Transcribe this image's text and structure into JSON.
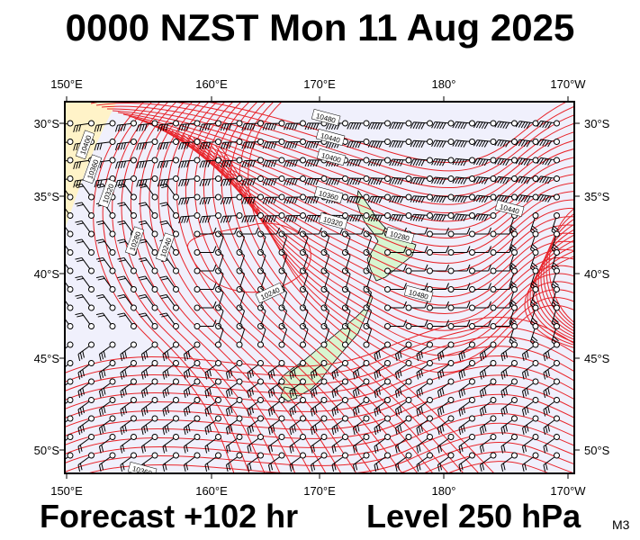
{
  "header": {
    "title": "0000 NZST Mon 11 Aug 2025"
  },
  "footer": {
    "forecast": "Forecast +102 hr",
    "level": "Level 250 hPa",
    "code": "M3"
  },
  "map": {
    "lon_labels": [
      "150°E",
      "160°E",
      "170°E",
      "180°",
      "170°W"
    ],
    "lat_labels": [
      "30°S",
      "35°S",
      "40°S",
      "45°S",
      "50°S"
    ],
    "colors": {
      "contour": "#e8242a",
      "ocean": "#f0f0fc",
      "land": "#d8f5d0",
      "high_shade": "#fff3c8"
    },
    "contour_labels": [
      "10480",
      "10440",
      "10400",
      "10360",
      "10320",
      "10280",
      "10240",
      "10480",
      "10440",
      "10400",
      "10360",
      "10320",
      "10280",
      "10240",
      "10360"
    ],
    "icons": [
      "wind-barb-icon",
      "coastline-icon"
    ]
  }
}
